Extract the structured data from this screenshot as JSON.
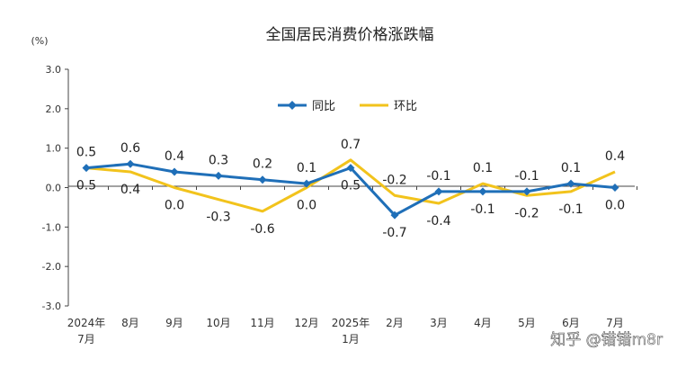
{
  "chart_data": {
    "type": "line",
    "title": "全国居民消费价格涨跌幅",
    "unit_label": "(%)",
    "categories": [
      [
        "2024年",
        "7月"
      ],
      [
        "8月"
      ],
      [
        "9月"
      ],
      [
        "10月"
      ],
      [
        "11月"
      ],
      [
        "12月"
      ],
      [
        "2025年",
        "1月"
      ],
      [
        "2月"
      ],
      [
        "3月"
      ],
      [
        "4月"
      ],
      [
        "5月"
      ],
      [
        "6月"
      ],
      [
        "7月"
      ]
    ],
    "ylim": [
      -3.0,
      3.0
    ],
    "yticks": [
      "3.0",
      "2.0",
      "1.0",
      "0.0",
      "-1.0",
      "-2.0",
      "-3.0"
    ],
    "grid": false,
    "legend_position": "top-center",
    "series": [
      {
        "name": "同比",
        "color": "#1f6fb8",
        "values": [
          0.5,
          0.6,
          0.4,
          0.3,
          0.2,
          0.1,
          0.5,
          -0.7,
          -0.1,
          -0.1,
          -0.1,
          0.1,
          0.0
        ],
        "labels": [
          "0.5",
          "0.6",
          "0.4",
          "0.3",
          "0.2",
          "0.1",
          "0.5",
          "-0.7",
          "-0.1",
          "-0.1",
          "-0.1",
          "0.1",
          "0.0"
        ]
      },
      {
        "name": "环比",
        "color": "#f2c31c",
        "values": [
          0.5,
          0.4,
          0.0,
          -0.3,
          -0.6,
          0.0,
          0.7,
          -0.2,
          -0.4,
          0.1,
          -0.2,
          -0.1,
          0.4
        ],
        "labels": [
          "0.5",
          "0.4",
          "0.0",
          "-0.3",
          "-0.6",
          "0.0",
          "0.7",
          "-0.2",
          "-0.4",
          "0.1",
          "-0.2",
          "-0.1",
          "0.4"
        ]
      }
    ]
  },
  "watermark": "知乎 @错错m8r"
}
